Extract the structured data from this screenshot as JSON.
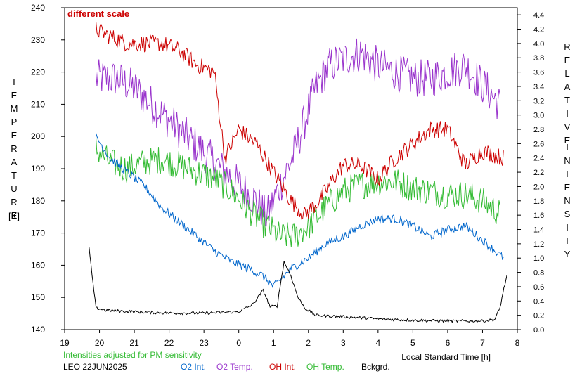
{
  "chart_data": {
    "type": "line",
    "annotation": "different scale",
    "left_axis": {
      "label_letters": [
        "T",
        "E",
        "M",
        "P",
        "E",
        "R",
        "A",
        "T",
        "U",
        "R",
        "E"
      ],
      "unit": "[K]",
      "ylim": [
        140,
        240
      ],
      "ticks": [
        140,
        150,
        160,
        170,
        180,
        190,
        200,
        210,
        220,
        230,
        240
      ]
    },
    "right_axis": {
      "label_word1": [
        "R",
        "E",
        "L",
        "A",
        "T",
        "I",
        "V",
        "E"
      ],
      "label_word2": [
        "I",
        "N",
        "T",
        "E",
        "N",
        "S",
        "I",
        "T",
        "Y"
      ],
      "ylim": [
        0.0,
        4.5
      ],
      "ticks": [
        "0.0",
        "0.2",
        "0.4",
        "0.6",
        "0.8",
        "1.0",
        "1.2",
        "1.4",
        "1.6",
        "1.8",
        "2.0",
        "2.2",
        "2.4",
        "2.6",
        "2.8",
        "3.0",
        "3.2",
        "3.4",
        "3.6",
        "3.8",
        "4.0",
        "4.2",
        "4.4"
      ]
    },
    "x_axis": {
      "xlabel": "Local Standard Time [h]",
      "xlim": [
        19,
        32
      ],
      "tick_labels": [
        "19",
        "20",
        "21",
        "22",
        "23",
        "0",
        "1",
        "2",
        "3",
        "4",
        "5",
        "6",
        "7",
        "8"
      ]
    },
    "footer": {
      "note": "Intensities adjusted for PM sensitivity",
      "station": "LEO 22JUN2025"
    },
    "legend": [
      {
        "label": "O2 Int.",
        "color": "#0066cc"
      },
      {
        "label": "O2 Temp.",
        "color": "#9933cc"
      },
      {
        "label": "OH Int.",
        "color": "#cc0000"
      },
      {
        "label": "OH Temp.",
        "color": "#33bb33"
      },
      {
        "label": "Bckgrd.",
        "color": "#000000"
      }
    ],
    "series": [
      {
        "name": "O2 Temp.",
        "axis": "left",
        "color": "#9933cc",
        "x_start": 19.9,
        "x_end": 31.5,
        "x": [
          19.9,
          20.5,
          21.0,
          21.5,
          22.0,
          22.5,
          23.0,
          23.5,
          24.0,
          24.5,
          24.8,
          25.2,
          25.6,
          25.9,
          26.2,
          26.6,
          27.0,
          27.5,
          28.0,
          28.5,
          29.0,
          29.5,
          30.0,
          30.5,
          31.0,
          31.5
        ],
        "y": [
          218,
          218,
          215,
          210,
          205,
          200,
          195,
          190,
          185,
          180,
          175,
          185,
          195,
          205,
          215,
          222,
          224,
          226,
          222,
          220,
          218,
          218,
          220,
          222,
          216,
          210
        ]
      },
      {
        "name": "OH Temp.",
        "axis": "left",
        "color": "#33bb33",
        "x_start": 19.9,
        "x_end": 31.5,
        "x": [
          19.9,
          20.3,
          20.8,
          21.3,
          21.8,
          22.3,
          22.8,
          23.3,
          23.8,
          24.3,
          24.8,
          25.2,
          25.6,
          26.0,
          26.5,
          27.0,
          27.5,
          28.0,
          28.5,
          29.0,
          29.5,
          30.0,
          30.5,
          31.0,
          31.5
        ],
        "y": [
          196,
          192,
          190,
          192,
          193,
          191,
          189,
          187,
          183,
          177,
          172,
          169,
          169,
          172,
          178,
          183,
          185,
          186,
          186,
          184,
          183,
          182,
          182,
          180,
          176
        ]
      },
      {
        "name": "OH Int.",
        "axis": "right",
        "color": "#cc0000",
        "x_start": 19.9,
        "x_end": 31.6,
        "x": [
          19.9,
          20.3,
          20.8,
          21.3,
          21.8,
          22.3,
          22.8,
          23.3,
          23.6,
          24.0,
          24.5,
          25.0,
          25.5,
          25.9,
          26.3,
          26.7,
          27.0,
          27.5,
          28.0,
          28.5,
          29.0,
          29.5,
          30.0,
          30.5,
          31.0,
          31.6
        ],
        "y": [
          4.2,
          4.1,
          4.0,
          4.0,
          4.0,
          3.9,
          3.7,
          3.6,
          2.4,
          2.8,
          2.6,
          2.2,
          1.8,
          1.6,
          1.8,
          2.1,
          2.3,
          2.3,
          2.1,
          2.4,
          2.6,
          2.8,
          2.8,
          2.3,
          2.5,
          2.4
        ]
      },
      {
        "name": "O2 Int.",
        "axis": "right",
        "color": "#0066cc",
        "x_start": 19.9,
        "x_end": 31.6,
        "x": [
          19.9,
          20.3,
          20.8,
          21.3,
          21.8,
          22.3,
          22.8,
          23.3,
          23.8,
          24.3,
          24.7,
          25.0,
          25.5,
          26.0,
          26.5,
          27.0,
          27.5,
          28.0,
          28.5,
          29.0,
          29.5,
          30.0,
          30.5,
          31.0,
          31.6
        ],
        "y": [
          2.7,
          2.4,
          2.2,
          2.0,
          1.7,
          1.5,
          1.3,
          1.1,
          0.95,
          0.85,
          0.75,
          0.6,
          0.85,
          1.0,
          1.2,
          1.3,
          1.45,
          1.55,
          1.55,
          1.45,
          1.3,
          1.4,
          1.45,
          1.25,
          1.0
        ]
      },
      {
        "name": "Bckgrd.",
        "axis": "right",
        "color": "#000000",
        "x_start": 19.7,
        "x_end": 31.7,
        "x": [
          19.7,
          19.8,
          19.9,
          20.2,
          21.0,
          22.0,
          23.0,
          24.0,
          24.4,
          24.7,
          24.9,
          25.1,
          25.3,
          25.5,
          25.7,
          25.9,
          26.2,
          27.0,
          28.0,
          29.0,
          30.0,
          31.0,
          31.35,
          31.5,
          31.6,
          31.7
        ],
        "y": [
          1.15,
          0.7,
          0.3,
          0.27,
          0.25,
          0.23,
          0.23,
          0.25,
          0.35,
          0.55,
          0.32,
          0.33,
          0.95,
          0.75,
          0.45,
          0.3,
          0.2,
          0.18,
          0.15,
          0.13,
          0.12,
          0.12,
          0.14,
          0.3,
          0.55,
          0.75
        ]
      }
    ]
  }
}
